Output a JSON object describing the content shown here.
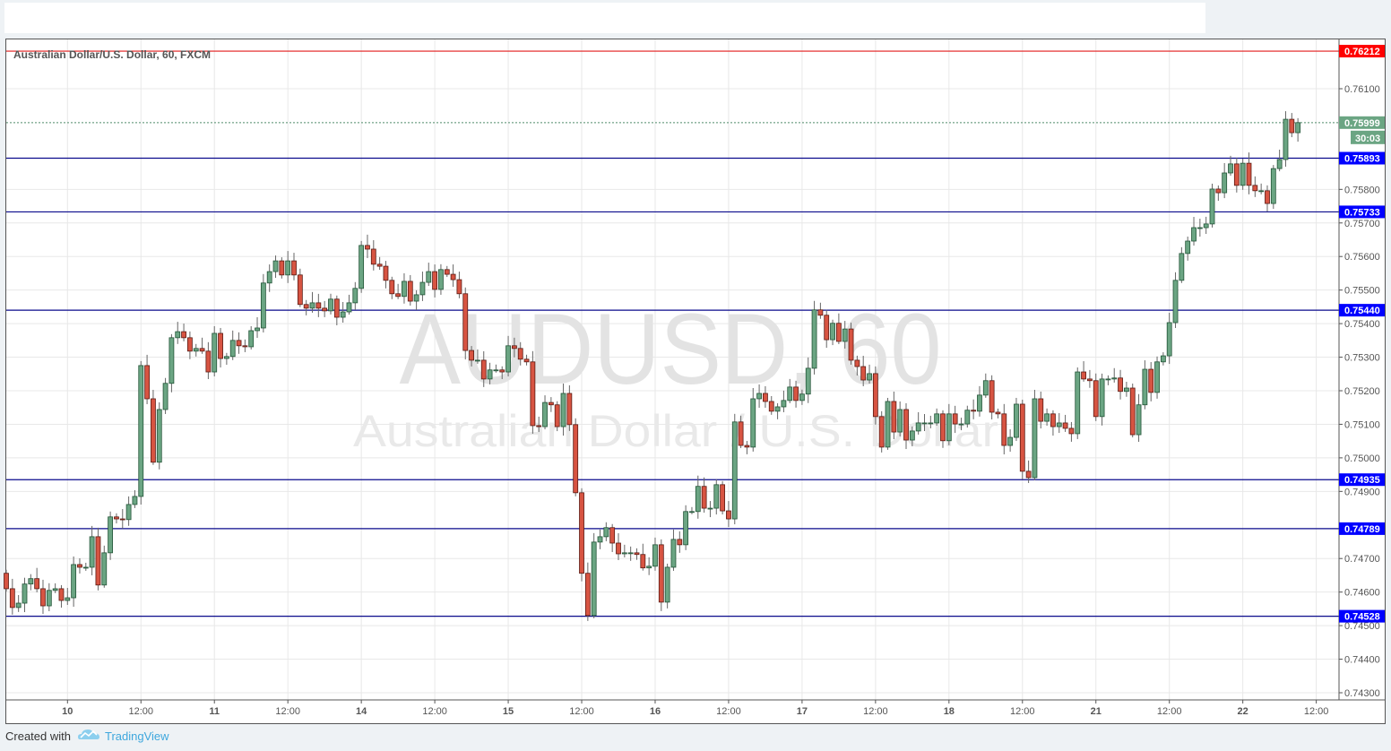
{
  "header": {
    "symbol_title": "Australian Dollar/U.S. Dollar, 60, FXCM"
  },
  "watermark": {
    "ticker": "AUDUSD, 60",
    "name": "Australian Dollar / U.S. Dollar"
  },
  "footer": {
    "created_with": "Created with",
    "brand": "TradingView",
    "logo_icon": "tradingview-cloud-icon"
  },
  "colors": {
    "up": "#6ba583",
    "up_border": "#225437",
    "down": "#d75442",
    "down_border": "#5b1a13",
    "level_line": "#0a0a8c",
    "level_label": "#0000ff",
    "resistance_line": "#e31b1b",
    "last_price": "#6ba583"
  },
  "chart_data": {
    "type": "candlestick",
    "title": "Australian Dollar/U.S. Dollar, 60, FXCM",
    "timeframe": "60",
    "first_open": 0.74656,
    "closes": [
      0.7461,
      0.74554,
      0.74567,
      0.74624,
      0.7464,
      0.7461,
      0.74559,
      0.74605,
      0.7461,
      0.74575,
      0.74583,
      0.74682,
      0.74674,
      0.74674,
      0.74765,
      0.74621,
      0.74717,
      0.74824,
      0.74818,
      0.74816,
      0.74861,
      0.74885,
      0.75275,
      0.75176,
      0.74987,
      0.75144,
      0.75222,
      0.75358,
      0.75376,
      0.75358,
      0.75318,
      0.75326,
      0.75318,
      0.75256,
      0.75371,
      0.75296,
      0.75302,
      0.7535,
      0.75334,
      0.75331,
      0.75379,
      0.75387,
      0.75521,
      0.75555,
      0.75587,
      0.75545,
      0.75587,
      0.75545,
      0.75457,
      0.75446,
      0.75462,
      0.75446,
      0.75438,
      0.75473,
      0.75419,
      0.75435,
      0.75462,
      0.75505,
      0.75633,
      0.75622,
      0.75577,
      0.75571,
      0.75529,
      0.75489,
      0.75481,
      0.75526,
      0.75467,
      0.75486,
      0.75523,
      0.75555,
      0.75502,
      0.75561,
      0.75547,
      0.75531,
      0.75489,
      0.7532,
      0.75291,
      0.75291,
      0.75235,
      0.75262,
      0.75262,
      0.75256,
      0.75334,
      0.75326,
      0.75294,
      0.75286,
      0.75096,
      0.75093,
      0.75165,
      0.75158,
      0.75093,
      0.75192,
      0.75099,
      0.74896,
      0.74656,
      0.7453,
      0.74749,
      0.74765,
      0.74792,
      0.74746,
      0.74714,
      0.74717,
      0.74717,
      0.74712,
      0.74672,
      0.74677,
      0.74741,
      0.7457,
      0.74674,
      0.74757,
      0.74741,
      0.7484,
      0.7484,
      0.74915,
      0.7485,
      0.7485,
      0.7492,
      0.74842,
      0.74818,
      0.75107,
      0.75037,
      0.75032,
      0.75176,
      0.75192,
      0.75168,
      0.75139,
      0.75152,
      0.75171,
      0.75211,
      0.75171,
      0.7519,
      0.75267,
      0.75441,
      0.75425,
      0.75352,
      0.75401,
      0.75347,
      0.75384,
      0.75291,
      0.75272,
      0.75232,
      0.75251,
      0.75123,
      0.75032,
      0.75168,
      0.75077,
      0.75144,
      0.75053,
      0.7508,
      0.75104,
      0.75104,
      0.75104,
      0.75131,
      0.75051,
      0.75131,
      0.75101,
      0.75101,
      0.75142,
      0.75139,
      0.75187,
      0.7523,
      0.75136,
      0.75131,
      0.75037,
      0.75061,
      0.7516,
      0.7496,
      0.74941,
      0.75176,
      0.75109,
      0.75131,
      0.75093,
      0.75104,
      0.75088,
      0.75072,
      0.75256,
      0.75235,
      0.7523,
      0.75123,
      0.75235,
      0.75235,
      0.75238,
      0.75198,
      0.75208,
      0.75069,
      0.75158,
      0.75264,
      0.75195,
      0.75286,
      0.75304,
      0.75403,
      0.75529,
      0.75609,
      0.75646,
      0.75686,
      0.75686,
      0.75697,
      0.75801,
      0.7579,
      0.75849,
      0.75876,
      0.75812,
      0.75878,
      0.75812,
      0.75796,
      0.75796,
      0.75758,
      0.75862,
      0.75889,
      0.76009,
      0.75969,
      0.75999
    ],
    "x_tick_labels": [
      "10",
      "12:00",
      "11",
      "12:00",
      "14",
      "12:00",
      "15",
      "12:00",
      "16",
      "12:00",
      "17",
      "12:00",
      "18",
      "12:00",
      "21",
      "12:00",
      "22",
      "12:00"
    ],
    "y_tick_labels": [
      "0.76100",
      "0.75800",
      "0.75700",
      "0.75600",
      "0.75500",
      "0.75400",
      "0.75300",
      "0.75200",
      "0.75100",
      "0.75000",
      "0.74900",
      "0.74700",
      "0.74600",
      "0.74500",
      "0.74400",
      "0.74300"
    ],
    "ylim": [
      0.7426,
      0.763
    ],
    "grid": true,
    "horizontal_levels": [
      {
        "value": 0.76212,
        "label": "0.76212",
        "kind": "resistance-red"
      },
      {
        "value": 0.75893,
        "label": "0.75893",
        "kind": "level"
      },
      {
        "value": 0.75733,
        "label": "0.75733",
        "kind": "level"
      },
      {
        "value": 0.7544,
        "label": "0.75440",
        "kind": "level"
      },
      {
        "value": 0.74935,
        "label": "0.74935",
        "kind": "level"
      },
      {
        "value": 0.74789,
        "label": "0.74789",
        "kind": "level"
      },
      {
        "value": 0.74528,
        "label": "0.74528",
        "kind": "level"
      }
    ],
    "last_price": {
      "value": 0.75999,
      "label": "0.75999",
      "countdown": "30:03"
    }
  }
}
